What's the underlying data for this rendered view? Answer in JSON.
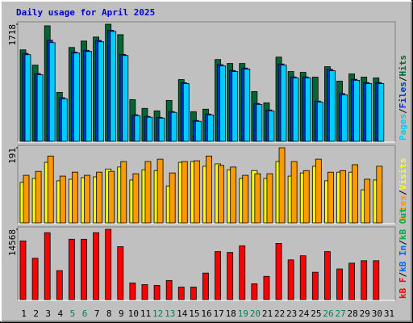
{
  "chart_data": [
    {
      "type": "bar",
      "title": "Daily usage for April 2025",
      "title_color": "#0000cc",
      "ylim": [
        0,
        1718
      ],
      "yticks": [
        1718
      ],
      "legend_separator": "/",
      "series": [
        {
          "name": "Pages",
          "color": "#00ccff",
          "values": [
            1271,
            977,
            1448,
            624,
            1295,
            1318,
            1460,
            1612,
            1259,
            377,
            353,
            341,
            424,
            847,
            294,
            388,
            1106,
            1024,
            1059,
            541,
            447,
            1118,
            930,
            930,
            577,
            1036,
            683,
            895,
            847,
            847,
            0
          ]
        },
        {
          "name": "Files",
          "color": "#0033cc",
          "values": [
            1290,
            995,
            1483,
            640,
            1310,
            1335,
            1480,
            1630,
            1275,
            390,
            365,
            352,
            436,
            860,
            305,
            400,
            1125,
            1040,
            1075,
            555,
            460,
            1135,
            945,
            945,
            590,
            1055,
            700,
            910,
            862,
            862,
            0
          ]
        },
        {
          "name": "Hits",
          "color": "#006633",
          "values": [
            1342,
            1118,
            1695,
            718,
            1377,
            1471,
            1530,
            1718,
            1565,
            612,
            483,
            447,
            600,
            906,
            435,
            471,
            1200,
            1142,
            1142,
            730,
            565,
            1236,
            1024,
            1012,
            942,
            1095,
            883,
            989,
            942,
            930,
            0
          ]
        }
      ]
    },
    {
      "type": "bar",
      "ylim": [
        0,
        191
      ],
      "yticks": [
        191
      ],
      "legend_separator": "/",
      "series": [
        {
          "name": "Sites",
          "color": "#ff9900",
          "values": [
            121,
            131,
            170,
            119,
            129,
            121,
            129,
            131,
            156,
            125,
            156,
            162,
            127,
            156,
            158,
            170,
            146,
            142,
            121,
            125,
            125,
            191,
            156,
            133,
            162,
            129,
            133,
            148,
            111,
            144,
            0
          ]
        },
        {
          "name": "Visits",
          "color": "#ffff00",
          "values": [
            103,
            113,
            154,
            107,
            111,
            115,
            117,
            137,
            142,
            109,
            135,
            133,
            94,
            154,
            156,
            144,
            150,
            135,
            113,
            133,
            113,
            156,
            119,
            127,
            144,
            107,
            129,
            129,
            84,
            109,
            0
          ]
        }
      ]
    },
    {
      "type": "bar",
      "ylim": [
        0,
        14568
      ],
      "yticks": [
        14568
      ],
      "legend_separator": "/",
      "categories": [
        "1",
        "2",
        "3",
        "4",
        "5",
        "6",
        "7",
        "8",
        "9",
        "10",
        "11",
        "12",
        "13",
        "14",
        "15",
        "16",
        "17",
        "18",
        "19",
        "20",
        "21",
        "22",
        "23",
        "24",
        "25",
        "26",
        "27",
        "28",
        "29",
        "30",
        "31"
      ],
      "category_colors": [
        "#000000",
        "#000000",
        "#000000",
        "#000000",
        "#00805a",
        "#00805a",
        "#000000",
        "#000000",
        "#000000",
        "#000000",
        "#000000",
        "#00805a",
        "#00805a",
        "#000000",
        "#000000",
        "#000000",
        "#000000",
        "#000000",
        "#00805a",
        "#00805a",
        "#000000",
        "#000000",
        "#000000",
        "#000000",
        "#000000",
        "#00805a",
        "#00805a",
        "#000000",
        "#000000",
        "#000000",
        "#000000"
      ],
      "series": [
        {
          "name": "kB F",
          "color": "#ff0000",
          "values": [
            12168,
            8577,
            13878,
            6012,
            12510,
            12510,
            13878,
            14568,
            10971,
            3447,
            3105,
            2934,
            3960,
            2592,
            2592,
            5499,
            9945,
            9774,
            11142,
            3276,
            4815,
            11655,
            8235,
            9090,
            5670,
            9945,
            6354,
            7551,
            8064,
            8064,
            0
          ]
        }
      ],
      "legend_extra": [
        {
          "name": "kB In",
          "color": "#0066ff"
        },
        {
          "name": "kB Out",
          "color": "#00aa44"
        }
      ]
    }
  ]
}
